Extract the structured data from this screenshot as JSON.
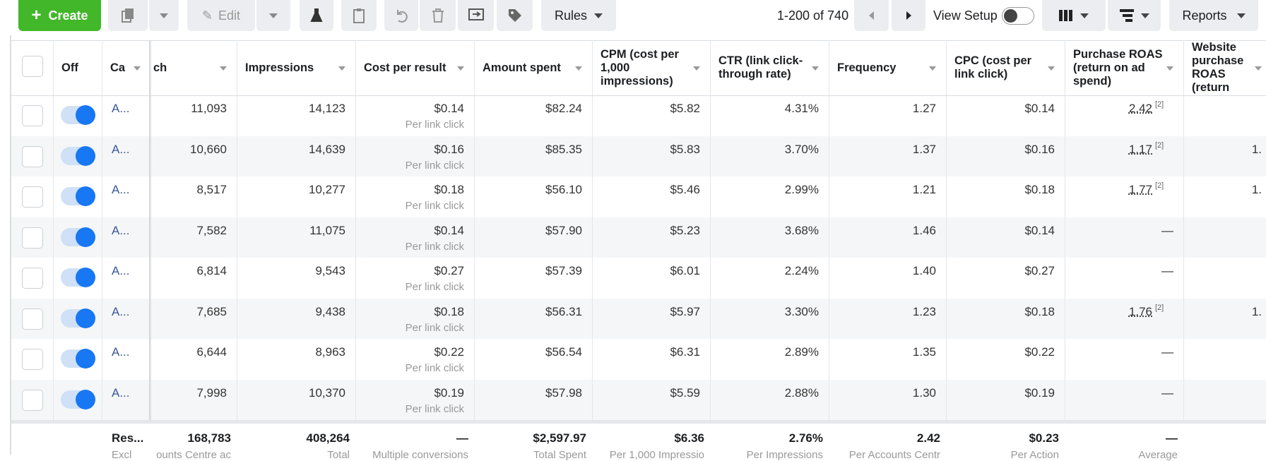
{
  "toolbar": {
    "create": "Create",
    "edit": "Edit",
    "rules": "Rules",
    "pagination": "1-200 of 740",
    "view_setup": "View Setup",
    "reports": "Reports"
  },
  "table": {
    "headers": [
      "Off",
      "Ca",
      "ch",
      "Impressions",
      "Cost per result",
      "Amount spent",
      "CPM (cost per 1,000 impressions)",
      "CTR (link click-through rate)",
      "Frequency",
      "CPC (cost per link click)",
      "Purchase ROAS (return on ad spend)",
      "Website purchase ROAS (return"
    ],
    "rows": [
      [
        "A...",
        "11,093",
        "14,123",
        {
          "main": "$0.14",
          "sub": "Per link click"
        },
        "$82.24",
        "$5.82",
        "4.31%",
        "1.27",
        "$0.14",
        {
          "main": "2.42",
          "note": "[2]"
        },
        ""
      ],
      [
        "A...",
        "10,660",
        "14,639",
        {
          "main": "$0.16",
          "sub": "Per link click"
        },
        "$85.35",
        "$5.83",
        "3.70%",
        "1.37",
        "$0.16",
        {
          "main": "1.17",
          "note": "[2]"
        },
        "1."
      ],
      [
        "A...",
        "8,517",
        "10,277",
        {
          "main": "$0.18",
          "sub": "Per link click"
        },
        "$56.10",
        "$5.46",
        "2.99%",
        "1.21",
        "$0.18",
        {
          "main": "1.77",
          "note": "[2]"
        },
        "1."
      ],
      [
        "A...",
        "7,582",
        "11,075",
        {
          "main": "$0.14",
          "sub": "Per link click"
        },
        "$57.90",
        "$5.23",
        "3.68%",
        "1.46",
        "$0.14",
        "—",
        ""
      ],
      [
        "A...",
        "6,814",
        "9,543",
        {
          "main": "$0.27",
          "sub": "Per link click"
        },
        "$57.39",
        "$6.01",
        "2.24%",
        "1.40",
        "$0.27",
        "—",
        ""
      ],
      [
        "A...",
        "7,685",
        "9,438",
        {
          "main": "$0.18",
          "sub": "Per link click"
        },
        "$56.31",
        "$5.97",
        "3.30%",
        "1.23",
        "$0.18",
        {
          "main": "1.76",
          "note": "[2]"
        },
        "1."
      ],
      [
        "A...",
        "6,644",
        "8,963",
        {
          "main": "$0.22",
          "sub": "Per link click"
        },
        "$56.54",
        "$6.31",
        "2.89%",
        "1.35",
        "$0.22",
        "—",
        ""
      ],
      [
        "A...",
        "7,998",
        "10,370",
        {
          "main": "$0.19",
          "sub": "Per link click"
        },
        "$57.98",
        "$5.59",
        "2.88%",
        "1.30",
        "$0.19",
        "—",
        ""
      ]
    ],
    "footer": [
      {
        "main": "Res...",
        "sub": "Excl"
      },
      {
        "main": "168,783",
        "sub": "ounts Centre ac"
      },
      {
        "main": "408,264",
        "sub": "Total"
      },
      {
        "main": "—",
        "sub": "Multiple conversions"
      },
      {
        "main": "$2,597.97",
        "sub": "Total Spent"
      },
      {
        "main": "$6.36",
        "sub": "Per 1,000 Impressio"
      },
      {
        "main": "2.76%",
        "sub": "Per Impressions"
      },
      {
        "main": "2.42",
        "sub": "Per Accounts Centr"
      },
      {
        "main": "$0.23",
        "sub": "Per Action"
      },
      {
        "main": "—",
        "sub": "Average"
      }
    ]
  }
}
